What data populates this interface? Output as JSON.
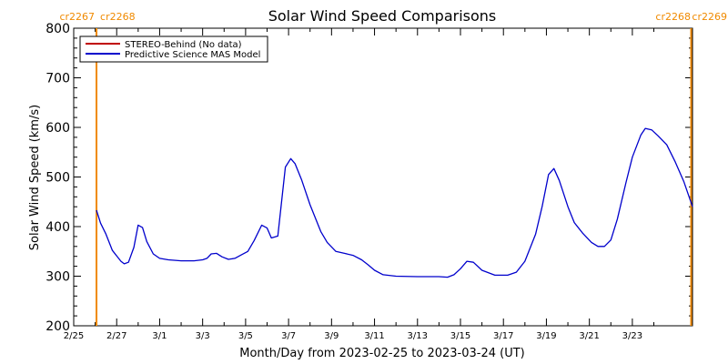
{
  "chart_data": {
    "type": "line",
    "title": "Solar Wind Speed Comparisons",
    "xlabel": "Month/Day from 2023-02-25 to 2023-03-24 (UT)",
    "ylabel": "Solar Wind Speed (km/s)",
    "ylim": [
      200,
      800
    ],
    "yticks": [
      200,
      300,
      400,
      500,
      600,
      700,
      800
    ],
    "xlim": [
      0,
      28.8
    ],
    "xticks": [
      {
        "day": 0,
        "label": "2/25"
      },
      {
        "day": 2,
        "label": "2/27"
      },
      {
        "day": 4,
        "label": "3/1"
      },
      {
        "day": 6,
        "label": "3/3"
      },
      {
        "day": 8,
        "label": "3/5"
      },
      {
        "day": 10,
        "label": "3/7"
      },
      {
        "day": 12,
        "label": "3/9"
      },
      {
        "day": 14,
        "label": "3/11"
      },
      {
        "day": 16,
        "label": "3/13"
      },
      {
        "day": 18,
        "label": "3/15"
      },
      {
        "day": 20,
        "label": "3/17"
      },
      {
        "day": 22,
        "label": "3/19"
      },
      {
        "day": 24,
        "label": "3/21"
      },
      {
        "day": 26,
        "label": "3/23"
      }
    ],
    "carrington_markers": [
      {
        "day": 1.06,
        "labels": [
          "cr2267",
          "cr2268"
        ]
      },
      {
        "day": 28.8,
        "labels": [
          "cr2268",
          "cr2269"
        ]
      }
    ],
    "legend": {
      "placement": "top-left",
      "entries": [
        {
          "label": "STEREO-Behind (No data)",
          "color": "#c00000"
        },
        {
          "label": "Predictive Science MAS Model",
          "color": "#0000cc"
        }
      ]
    },
    "series": [
      {
        "name": "Predictive Science MAS Model",
        "color": "#0000cc",
        "points": [
          [
            1.06,
            433
          ],
          [
            1.25,
            407
          ],
          [
            1.5,
            385
          ],
          [
            1.8,
            352
          ],
          [
            2.2,
            330
          ],
          [
            2.35,
            325
          ],
          [
            2.55,
            328
          ],
          [
            2.8,
            358
          ],
          [
            3.0,
            403
          ],
          [
            3.2,
            398
          ],
          [
            3.4,
            370
          ],
          [
            3.7,
            345
          ],
          [
            4.0,
            336
          ],
          [
            4.4,
            333
          ],
          [
            5.0,
            331
          ],
          [
            5.6,
            331
          ],
          [
            6.0,
            333
          ],
          [
            6.2,
            336
          ],
          [
            6.4,
            345
          ],
          [
            6.65,
            346
          ],
          [
            6.9,
            339
          ],
          [
            7.2,
            334
          ],
          [
            7.5,
            336
          ],
          [
            7.8,
            343
          ],
          [
            8.1,
            350
          ],
          [
            8.4,
            372
          ],
          [
            8.75,
            403
          ],
          [
            9.0,
            397
          ],
          [
            9.2,
            377
          ],
          [
            9.5,
            381
          ],
          [
            9.85,
            520
          ],
          [
            10.1,
            537
          ],
          [
            10.3,
            527
          ],
          [
            10.6,
            495
          ],
          [
            11.0,
            444
          ],
          [
            11.5,
            390
          ],
          [
            11.8,
            368
          ],
          [
            12.2,
            350
          ],
          [
            12.6,
            346
          ],
          [
            13.0,
            342
          ],
          [
            13.4,
            333
          ],
          [
            13.7,
            323
          ],
          [
            14.0,
            312
          ],
          [
            14.4,
            303
          ],
          [
            15.0,
            300
          ],
          [
            16.0,
            299
          ],
          [
            17.0,
            299
          ],
          [
            17.4,
            298
          ],
          [
            17.7,
            303
          ],
          [
            18.0,
            315
          ],
          [
            18.3,
            330
          ],
          [
            18.6,
            328
          ],
          [
            19.0,
            312
          ],
          [
            19.6,
            302
          ],
          [
            20.2,
            302
          ],
          [
            20.6,
            308
          ],
          [
            21.0,
            330
          ],
          [
            21.5,
            385
          ],
          [
            21.8,
            440
          ],
          [
            22.1,
            505
          ],
          [
            22.35,
            517
          ],
          [
            22.6,
            493
          ],
          [
            23.0,
            440
          ],
          [
            23.3,
            408
          ],
          [
            23.7,
            386
          ],
          [
            24.1,
            368
          ],
          [
            24.4,
            360
          ],
          [
            24.7,
            360
          ],
          [
            25.0,
            373
          ],
          [
            25.3,
            415
          ],
          [
            25.7,
            488
          ],
          [
            26.0,
            540
          ],
          [
            26.4,
            585
          ],
          [
            26.6,
            598
          ],
          [
            26.9,
            595
          ],
          [
            27.2,
            583
          ],
          [
            27.6,
            565
          ],
          [
            28.0,
            530
          ],
          [
            28.4,
            490
          ],
          [
            28.8,
            440
          ]
        ]
      }
    ]
  }
}
